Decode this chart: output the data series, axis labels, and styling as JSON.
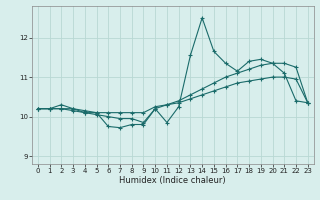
{
  "xlabel": "Humidex (Indice chaleur)",
  "bg_color": "#d8eeec",
  "grid_color": "#b8d8d4",
  "line_color": "#1a6b6a",
  "xlim": [
    -0.5,
    23.5
  ],
  "ylim": [
    8.8,
    12.8
  ],
  "yticks": [
    9,
    10,
    11,
    12
  ],
  "xticks": [
    0,
    1,
    2,
    3,
    4,
    5,
    6,
    7,
    8,
    9,
    10,
    11,
    12,
    13,
    14,
    15,
    16,
    17,
    18,
    19,
    20,
    21,
    22,
    23
  ],
  "series1_x": [
    0,
    1,
    2,
    3,
    4,
    5,
    6,
    7,
    8,
    9,
    10,
    11,
    12,
    13,
    14,
    15,
    16,
    17,
    18,
    19,
    20,
    21,
    22,
    23
  ],
  "series1_y": [
    10.2,
    10.2,
    10.3,
    10.2,
    10.15,
    10.1,
    9.75,
    9.72,
    9.8,
    9.8,
    10.2,
    9.85,
    10.25,
    11.55,
    12.5,
    11.65,
    11.35,
    11.15,
    11.4,
    11.45,
    11.35,
    11.1,
    10.4,
    10.35
  ],
  "series2_x": [
    0,
    1,
    2,
    3,
    4,
    5,
    6,
    7,
    8,
    9,
    10,
    11,
    12,
    13,
    14,
    15,
    16,
    17,
    18,
    19,
    20,
    21,
    22,
    23
  ],
  "series2_y": [
    10.2,
    10.2,
    10.2,
    10.2,
    10.1,
    10.1,
    10.1,
    10.1,
    10.1,
    10.1,
    10.25,
    10.3,
    10.35,
    10.45,
    10.55,
    10.65,
    10.75,
    10.85,
    10.9,
    10.95,
    11.0,
    11.0,
    10.95,
    10.35
  ],
  "series3_x": [
    0,
    1,
    2,
    3,
    4,
    5,
    6,
    7,
    8,
    9,
    10,
    11,
    12,
    13,
    14,
    15,
    16,
    17,
    18,
    19,
    20,
    21,
    22,
    23
  ],
  "series3_y": [
    10.2,
    10.2,
    10.2,
    10.15,
    10.1,
    10.05,
    10.0,
    9.95,
    9.95,
    9.85,
    10.2,
    10.3,
    10.4,
    10.55,
    10.7,
    10.85,
    11.0,
    11.1,
    11.2,
    11.3,
    11.35,
    11.35,
    11.25,
    10.35
  ],
  "xlabel_fontsize": 6,
  "tick_fontsize": 5,
  "linewidth": 0.8,
  "markersize": 3
}
